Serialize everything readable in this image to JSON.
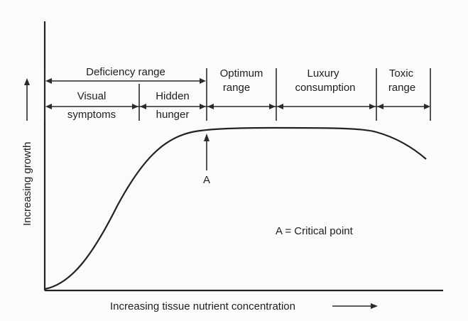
{
  "axes": {
    "y_label": "Increasing growth",
    "x_label": "Increasing tissue nutrient concentration"
  },
  "ranges": {
    "deficiency": "Deficiency range",
    "visual_line1": "Visual",
    "visual_line2": "symptoms",
    "hidden_line1": "Hidden",
    "hidden_line2": "hunger",
    "optimum_line1": "Optimum",
    "optimum_line2": "range",
    "luxury_line1": "Luxury",
    "luxury_line2": "consumption",
    "toxic_line1": "Toxic",
    "toxic_line2": "range"
  },
  "marker": {
    "point_label": "A",
    "legend": "A = Critical point"
  }
}
